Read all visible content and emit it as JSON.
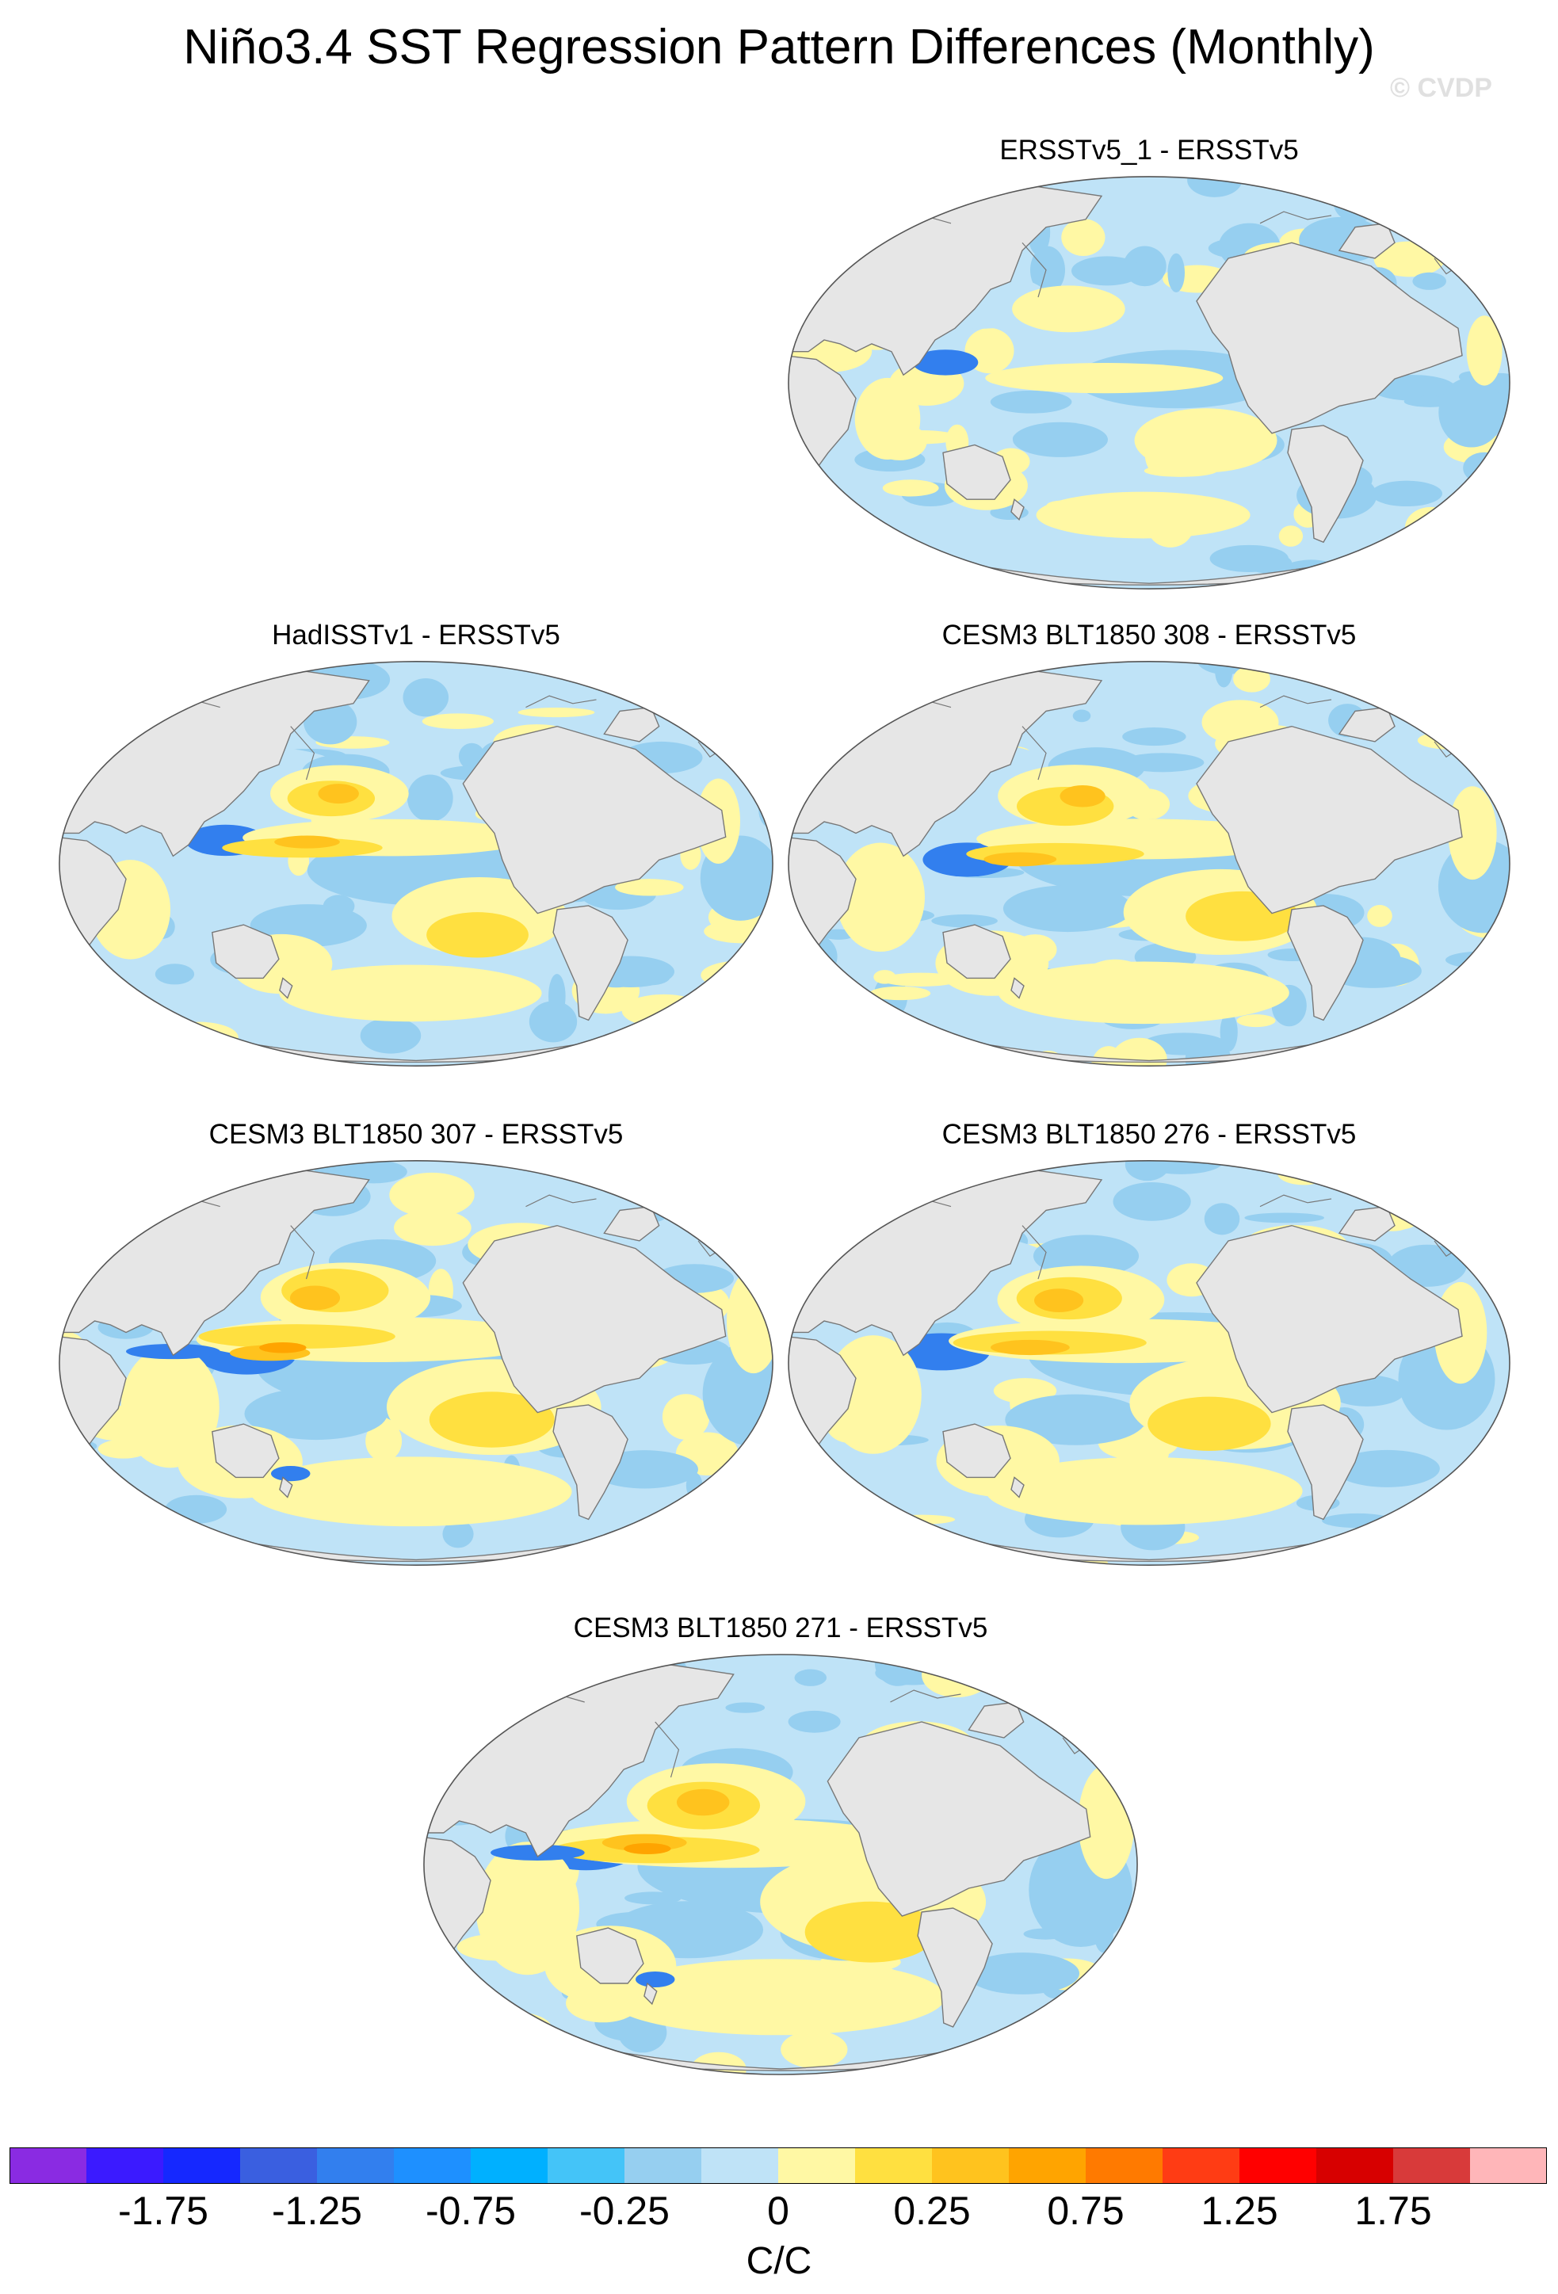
{
  "header": {
    "title": "Niño3.4 SST Regression Pattern Differences (Monthly)",
    "watermark": "© CVDP"
  },
  "panels": [
    {
      "title": "ERSSTv5_1 - ERSSTv5",
      "variant": 0
    },
    {
      "title": "HadISSTv1 - ERSSTv5",
      "variant": 1
    },
    {
      "title": "CESM3 BLT1850 308 - ERSSTv5",
      "variant": 2
    },
    {
      "title": "CESM3 BLT1850 307 - ERSSTv5",
      "variant": 3
    },
    {
      "title": "CESM3 BLT1850 276 - ERSSTv5",
      "variant": 4
    },
    {
      "title": "CESM3 BLT1850 271 - ERSSTv5",
      "variant": 5
    }
  ],
  "colorbar": {
    "colors": [
      "#8a2be2",
      "#3b1aff",
      "#1528ff",
      "#3a5fe0",
      "#327fee",
      "#1e90ff",
      "#00b0ff",
      "#44c4f8",
      "#96cff0",
      "#bfe3f7",
      "#fff8a4",
      "#ffe040",
      "#ffc31e",
      "#ffa400",
      "#ff7a00",
      "#ff3c14",
      "#ff0000",
      "#d70000",
      "#d83a3a",
      "#ffb6b9"
    ],
    "labels": [
      "-1.75",
      "-1.25",
      "-0.75",
      "-0.25",
      "0",
      "0.25",
      "0.75",
      "1.25",
      "1.75"
    ],
    "units": "C/C"
  },
  "map_colors": {
    "land": "#e6e6e6",
    "coast": "#777777",
    "near_zero_negative": "#bfe3f7",
    "weak_negative": "#96cff0",
    "moderate_negative": "#44c4f8",
    "strong_negative": "#327fee",
    "weak_positive": "#fff8a4",
    "moderate_positive": "#ffe040",
    "strong_positive": "#ffc31e",
    "very_strong_positive": "#ffa400"
  }
}
